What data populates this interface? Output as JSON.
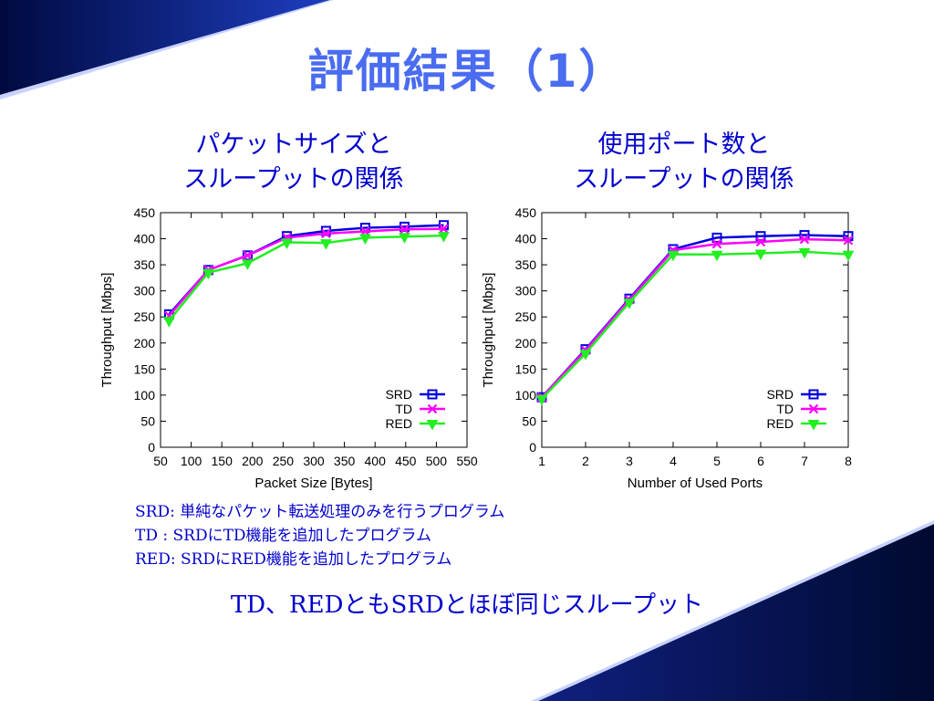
{
  "slide": {
    "title": "評価結果（1）",
    "left_subtitle": [
      "パケットサイズと",
      "スループットの関係"
    ],
    "right_subtitle": [
      "使用ポート数と",
      "スループットの関係"
    ],
    "descriptions": [
      "SRD: 単純なパケット転送処理のみを行うプログラム",
      "TD  : SRDにTD機能を追加したプログラム",
      "RED: SRDにRED機能を追加したプログラム"
    ],
    "conclusion": "TD、REDともSRDとほぼ同じスループット"
  },
  "colors": {
    "SRD": "#0000dd",
    "TD": "#ff00ff",
    "RED": "#22ee22",
    "title": "#4a6cf0",
    "text": "#0000cc"
  },
  "chart_data": [
    {
      "type": "line",
      "xlabel": "Packet Size [Bytes]",
      "ylabel": "Throughput [Mbps]",
      "xlim": [
        50,
        550
      ],
      "ylim": [
        0,
        450
      ],
      "xticks": [
        50,
        100,
        150,
        200,
        250,
        300,
        350,
        400,
        450,
        500,
        550
      ],
      "yticks": [
        0,
        50,
        100,
        150,
        200,
        250,
        300,
        350,
        400,
        450
      ],
      "legend_position": "bottom-right",
      "grid": false,
      "x": [
        64,
        128,
        192,
        256,
        320,
        384,
        448,
        512
      ],
      "series": [
        {
          "name": "SRD",
          "marker": "square",
          "values": [
            255,
            340,
            368,
            405,
            415,
            421,
            423,
            426
          ]
        },
        {
          "name": "TD",
          "marker": "cross",
          "values": [
            252,
            340,
            368,
            402,
            410,
            414,
            418,
            419
          ]
        },
        {
          "name": "RED",
          "marker": "triangle-down",
          "values": [
            243,
            335,
            353,
            393,
            392,
            402,
            404,
            406
          ]
        }
      ]
    },
    {
      "type": "line",
      "xlabel": "Number of Used Ports",
      "ylabel": "Throughput [Mbps]",
      "xlim": [
        1,
        8
      ],
      "ylim": [
        0,
        450
      ],
      "xticks": [
        1,
        2,
        3,
        4,
        5,
        6,
        7,
        8
      ],
      "yticks": [
        0,
        50,
        100,
        150,
        200,
        250,
        300,
        350,
        400,
        450
      ],
      "legend_position": "bottom-right",
      "grid": false,
      "x": [
        1,
        2,
        3,
        4,
        5,
        6,
        7,
        8
      ],
      "series": [
        {
          "name": "SRD",
          "marker": "square",
          "values": [
            96,
            188,
            285,
            380,
            402,
            405,
            407,
            405
          ]
        },
        {
          "name": "TD",
          "marker": "cross",
          "values": [
            96,
            186,
            283,
            378,
            390,
            394,
            399,
            397
          ]
        },
        {
          "name": "RED",
          "marker": "triangle-down",
          "values": [
            93,
            180,
            278,
            370,
            370,
            372,
            375,
            370
          ]
        }
      ]
    }
  ]
}
